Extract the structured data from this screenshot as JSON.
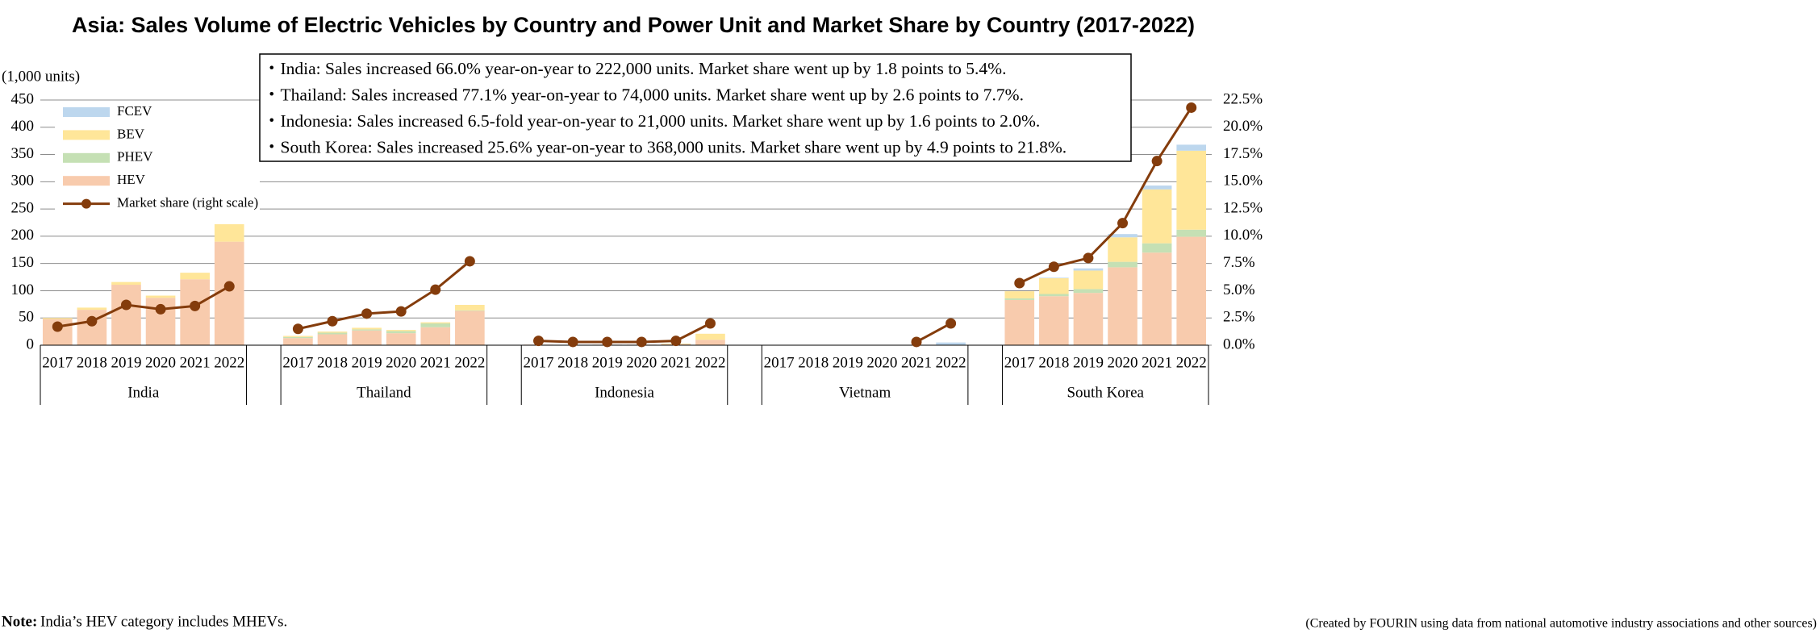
{
  "chart_data": {
    "type": "bar",
    "title": "Asia: Sales Volume of Electric Vehicles by Country and Power Unit and Market Share by Country (2017-2022)",
    "y_axis_label": "(1,000 units)",
    "stacked": true,
    "grid": true,
    "legend": "upper left",
    "categories": [
      "2017",
      "2018",
      "2019",
      "2020",
      "2021",
      "2022",
      null,
      "2017",
      "2018",
      "2019",
      "2020",
      "2021",
      "2022",
      null,
      "2017",
      "2018",
      "2019",
      "2020",
      "2021",
      "2022",
      null,
      "2017",
      "2018",
      "2019",
      "2020",
      "2021",
      "2022",
      null,
      "2017",
      "2018",
      "2019",
      "2020",
      "2021",
      "2022"
    ],
    "groups": [
      "India",
      "Thailand",
      "Indonesia",
      "Vietnam",
      "South Korea"
    ],
    "series": [
      {
        "name": "HEV",
        "color": "#f8cbad",
        "values": [
          48,
          65,
          111,
          87,
          121,
          190,
          null,
          13,
          20,
          27,
          22,
          33,
          63,
          null,
          1,
          0,
          1,
          1,
          2,
          10,
          null,
          0,
          0,
          0,
          0,
          0,
          0,
          null,
          83,
          90,
          96,
          143,
          170,
          199
        ]
      },
      {
        "name": "PHEV",
        "color": "#c5e0b4",
        "values": [
          0,
          0,
          0,
          0,
          0,
          0,
          null,
          2,
          3,
          2,
          4,
          7,
          1,
          null,
          0,
          0,
          0,
          0,
          0,
          0,
          null,
          0,
          0,
          0,
          0,
          0,
          0,
          null,
          3,
          4,
          7,
          10,
          17,
          13
        ]
      },
      {
        "name": "BEV",
        "color": "#ffe699",
        "values": [
          2,
          4,
          5,
          4,
          12,
          32,
          null,
          2,
          2,
          3,
          2,
          2,
          10,
          null,
          0,
          0,
          0,
          0,
          1,
          11,
          null,
          0,
          0,
          0,
          0,
          0,
          0,
          null,
          13,
          29,
          34,
          45,
          99,
          145
        ]
      },
      {
        "name": "FCEV",
        "color": "#bdd7ee",
        "values": [
          0,
          0,
          0,
          0,
          0,
          0,
          null,
          0,
          0,
          0,
          0,
          0,
          0,
          null,
          0,
          0,
          0,
          0,
          0,
          0,
          null,
          0,
          0,
          0,
          0,
          0,
          5,
          null,
          0,
          1,
          4,
          6,
          7,
          11
        ]
      },
      {
        "name": "Market share (right scale)",
        "type": "line",
        "axis": "y2",
        "color": "#843c0c",
        "values": [
          1.7,
          2.2,
          3.7,
          3.3,
          3.6,
          5.4,
          null,
          1.5,
          2.2,
          2.9,
          3.1,
          5.1,
          7.7,
          null,
          0.4,
          0.3,
          0.3,
          0.3,
          0.4,
          2.0,
          null,
          null,
          null,
          null,
          null,
          0.3,
          2.0,
          null,
          5.7,
          7.2,
          8.0,
          11.2,
          16.9,
          21.8
        ]
      }
    ],
    "ylim": [
      0,
      450
    ],
    "yticks": [
      0,
      50,
      100,
      150,
      200,
      250,
      300,
      350,
      400,
      450
    ],
    "y2lim": [
      0,
      22.5
    ],
    "y2ticks": [
      {
        "value": 0,
        "label": "0.0%"
      },
      {
        "value": 2.5,
        "label": "2.5%"
      },
      {
        "value": 5,
        "label": "5.0%"
      },
      {
        "value": 7.5,
        "label": "7.5%"
      },
      {
        "value": 10,
        "label": "10.0%"
      },
      {
        "value": 12.5,
        "label": "12.5%"
      },
      {
        "value": 15,
        "label": "15.0%"
      },
      {
        "value": 17.5,
        "label": "17.5%"
      },
      {
        "value": 20,
        "label": "20.0%"
      },
      {
        "value": 22.5,
        "label": "22.5%"
      }
    ],
    "annotations": [
      "・India: Sales increased 66.0% year-on-year to 222,000 units. Market share went up by 1.8 points to 5.4%.",
      "・Thailand: Sales increased 77.1% year-on-year to 74,000 units. Market share went up by 2.6 points to 7.7%.",
      "・Indonesia: Sales increased 6.5-fold year-on-year to 21,000 units. Market share went up by 1.6 points to 2.0%.",
      "・South Korea: Sales increased 25.6% year-on-year to 368,000 units. Market share went up by 4.9 points to 21.8%."
    ],
    "note_label": "Note:",
    "note": "India’s HEV category includes MHEVs.",
    "source": "(Created by FOURIN using data from national automotive industry associations and other sources)"
  }
}
